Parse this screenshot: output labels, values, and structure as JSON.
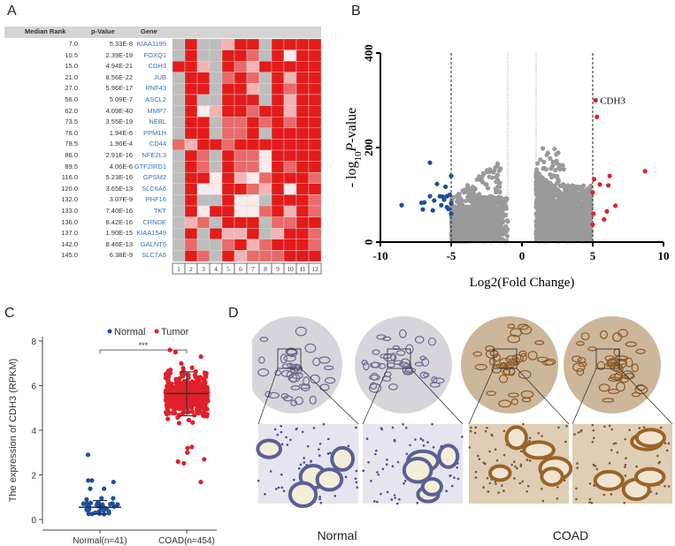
{
  "panels": {
    "a": "A",
    "b": "B",
    "c": "C",
    "d": "D"
  },
  "chart_data": [
    {
      "type": "heatmap",
      "headers": [
        "Median Rank",
        "p-Value",
        "Gene"
      ],
      "color_scale": {
        "gray": "#bdbdbd",
        "white": "#fbeaea",
        "light": "#f4b3b3",
        "medium": "#e96a6a",
        "red": "#e31b1b"
      },
      "level_codes": {
        "0": "gray",
        "1": "white",
        "2": "light",
        "3": "medium",
        "4": "red"
      },
      "columns": [
        "1",
        "2",
        "3",
        "4",
        "5",
        "6",
        "7",
        "8",
        "9",
        "10",
        "11",
        "12"
      ],
      "rows": [
        {
          "rank": "7.0",
          "p": "5.33E-8",
          "gene": "KIAA1199",
          "cells": [
            0,
            4,
            0,
            0,
            2,
            4,
            4,
            0,
            4,
            4,
            4,
            4
          ]
        },
        {
          "rank": "10.5",
          "p": "2.39E-19",
          "gene": "FOXQ1",
          "cells": [
            0,
            4,
            0,
            0,
            4,
            4,
            3,
            0,
            4,
            1,
            4,
            4
          ]
        },
        {
          "rank": "15.0",
          "p": "4.94E-21",
          "gene": "CDH3",
          "cells": [
            4,
            4,
            2,
            0,
            4,
            3,
            2,
            4,
            4,
            4,
            4,
            4
          ]
        },
        {
          "rank": "21.0",
          "p": "8.56E-22",
          "gene": "JUB",
          "cells": [
            0,
            4,
            4,
            0,
            3,
            4,
            3,
            0,
            4,
            2,
            4,
            4
          ]
        },
        {
          "rank": "27.0",
          "p": "5.96E-17",
          "gene": "RNF43",
          "cells": [
            0,
            4,
            4,
            0,
            4,
            4,
            2,
            0,
            4,
            3,
            4,
            4
          ]
        },
        {
          "rank": "56.0",
          "p": "5.09E-7",
          "gene": "ASCL2",
          "cells": [
            0,
            4,
            0,
            0,
            4,
            4,
            4,
            0,
            4,
            2,
            4,
            4
          ]
        },
        {
          "rank": "62.0",
          "p": "4.09E-40",
          "gene": "MMP7",
          "cells": [
            0,
            4,
            1,
            2,
            4,
            4,
            3,
            4,
            4,
            2,
            4,
            4
          ]
        },
        {
          "rank": "73.5",
          "p": "3.55E-19",
          "gene": "NEBL",
          "cells": [
            0,
            4,
            4,
            0,
            3,
            3,
            4,
            3,
            4,
            3,
            4,
            4
          ]
        },
        {
          "rank": "76.0",
          "p": "1.94E-6",
          "gene": "PPM1H",
          "cells": [
            0,
            4,
            4,
            0,
            3,
            3,
            4,
            0,
            4,
            4,
            4,
            4
          ]
        },
        {
          "rank": "78.5",
          "p": "1.96E-4",
          "gene": "CD44",
          "cells": [
            3,
            2,
            4,
            4,
            3,
            4,
            4,
            4,
            4,
            4,
            4,
            4
          ]
        },
        {
          "rank": "86.0",
          "p": "2.91E-16",
          "gene": "NFE2L3",
          "cells": [
            0,
            4,
            3,
            0,
            4,
            3,
            3,
            1,
            4,
            4,
            4,
            4
          ]
        },
        {
          "rank": "89.5",
          "p": "4.06E-6",
          "gene": "GTF2IRD1",
          "cells": [
            0,
            4,
            3,
            0,
            4,
            3,
            3,
            1,
            4,
            3,
            4,
            4
          ]
        },
        {
          "rank": "116.0",
          "p": "5.23E-16",
          "gene": "GPSM2",
          "cells": [
            0,
            4,
            4,
            1,
            4,
            2,
            1,
            3,
            4,
            4,
            4,
            3
          ]
        },
        {
          "rank": "120.0",
          "p": "3.65E-13",
          "gene": "SLC6A6",
          "cells": [
            0,
            4,
            1,
            1,
            4,
            4,
            3,
            2,
            4,
            1,
            4,
            4
          ]
        },
        {
          "rank": "132.0",
          "p": "3.07E-9",
          "gene": "PHF16",
          "cells": [
            0,
            4,
            0,
            0,
            4,
            1,
            1,
            0,
            4,
            4,
            4,
            3
          ]
        },
        {
          "rank": "133.0",
          "p": "7.40E-16",
          "gene": "TKT",
          "cells": [
            0,
            4,
            1,
            4,
            4,
            1,
            1,
            3,
            4,
            2,
            4,
            3
          ]
        },
        {
          "rank": "136.0",
          "p": "8.42E-16",
          "gene": "CRNDE",
          "cells": [
            0,
            2,
            3,
            0,
            4,
            4,
            4,
            0,
            3,
            3,
            4,
            4
          ]
        },
        {
          "rank": "137.0",
          "p": "1.90E-15",
          "gene": "KIAA1549",
          "cells": [
            0,
            4,
            0,
            4,
            2,
            2,
            4,
            0,
            2,
            4,
            4,
            3
          ]
        },
        {
          "rank": "142.0",
          "p": "8.46E-13",
          "gene": "GALNT6",
          "cells": [
            0,
            3,
            0,
            0,
            3,
            4,
            2,
            3,
            4,
            4,
            4,
            3
          ]
        },
        {
          "rank": "145.0",
          "p": "6.38E-9",
          "gene": "SLC7A5",
          "cells": [
            0,
            4,
            3,
            0,
            4,
            2,
            3,
            3,
            3,
            4,
            4,
            4
          ]
        }
      ]
    },
    {
      "type": "scatter",
      "xlabel": "Log2(Fold Change)",
      "ylabel_prefix": "- log",
      "ylabel_sub": "10",
      "ylabel_p": "P",
      "ylabel_suffix": "-value",
      "xlim": [
        -10,
        10
      ],
      "ylim": [
        0,
        400
      ],
      "xticks": [
        "-10",
        "-5",
        "0",
        "5",
        "10"
      ],
      "yticks": [
        "0",
        "200",
        "400"
      ],
      "threshold_lines": [
        -5,
        -1,
        1,
        5
      ],
      "colors": {
        "up": "#e0202a",
        "down": "#1f4e9c",
        "ns": "#9a9a9a"
      },
      "annotation": {
        "label": "CDH3",
        "x": 5.2,
        "y": 300
      },
      "up": [
        [
          5.2,
          300
        ],
        [
          5.3,
          265
        ],
        [
          5.1,
          133
        ],
        [
          5.5,
          122
        ],
        [
          6.2,
          140
        ],
        [
          6.1,
          120
        ],
        [
          8.7,
          150
        ],
        [
          5.0,
          105
        ],
        [
          6.6,
          77
        ],
        [
          6.0,
          65
        ],
        [
          5.8,
          48
        ],
        [
          5.05,
          60
        ],
        [
          5.0,
          37
        ]
      ],
      "down": [
        [
          -6.5,
          168
        ],
        [
          -6.0,
          123
        ],
        [
          -5.4,
          117
        ],
        [
          -5.0,
          140
        ],
        [
          -8.5,
          78
        ],
        [
          -7.1,
          83
        ],
        [
          -6.9,
          84
        ],
        [
          -7.0,
          69
        ],
        [
          -6.5,
          97
        ],
        [
          -6.3,
          67
        ],
        [
          -6.2,
          88
        ],
        [
          -5.8,
          97
        ],
        [
          -5.6,
          96
        ],
        [
          -5.5,
          90
        ],
        [
          -5.7,
          78
        ],
        [
          -5.3,
          74
        ],
        [
          -5.2,
          70
        ],
        [
          -5.0,
          82
        ],
        [
          -5.0,
          60
        ],
        [
          -5.3,
          97
        ],
        [
          -5.1,
          100
        ]
      ]
    },
    {
      "type": "scatter",
      "ylabel": "The expression of CDH3 (RPKM)",
      "ylim": [
        0,
        8
      ],
      "yticks": [
        "0",
        "2",
        "4",
        "6",
        "8"
      ],
      "categories": [
        "Normal(n=41)",
        "COAD(n=454)"
      ],
      "legend": [
        {
          "name": "Normal",
          "color": "#1f4e9c"
        },
        {
          "name": "Tumor",
          "color": "#e0202a"
        }
      ],
      "legend_position": "top",
      "significance": "***",
      "series": [
        {
          "name": "Normal",
          "n": 41,
          "mean": 0.55,
          "sd_range": [
            0.25,
            0.85
          ],
          "outliers": [
            2.9,
            1.75,
            1.75,
            1.68,
            1.38,
            1.38,
            0.95,
            0.95,
            0.9
          ]
        },
        {
          "name": "Tumor",
          "n": 454,
          "mean": 5.65,
          "sd_range": [
            4.65,
            6.62
          ],
          "outliers": [
            1.68,
            2.52,
            2.6,
            2.7,
            3.0,
            3.2,
            3.25,
            7.5,
            7.6,
            7.3
          ]
        }
      ]
    }
  ],
  "histology": {
    "labels": [
      "Normal",
      "COAD"
    ]
  }
}
